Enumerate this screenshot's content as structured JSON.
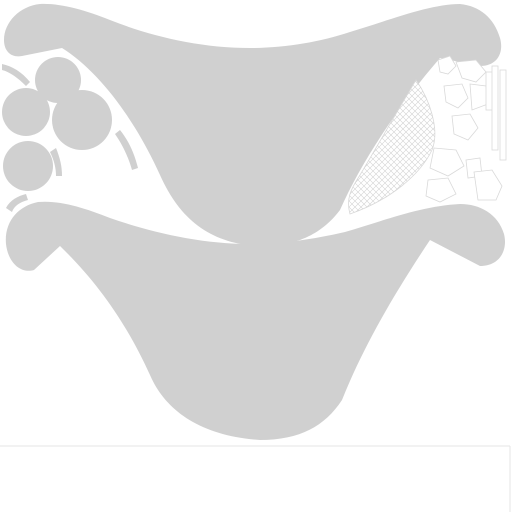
{
  "colors": {
    "background": "#ffffff",
    "panel_fill": "#d0d0d0",
    "outline_stroke": "#d9d9d9",
    "divider": "#e6e6e6"
  }
}
